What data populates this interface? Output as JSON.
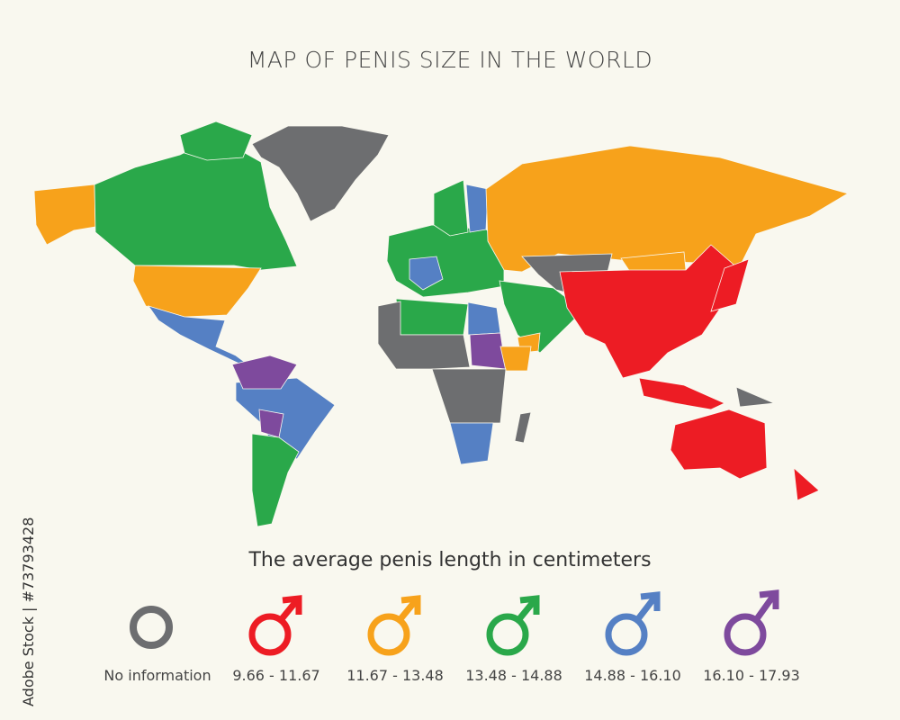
{
  "title": "MAP OF PENIS SIZE IN THE WORLD",
  "subtitle": "The average penis length in centimeters",
  "colors": {
    "none": "#6d6e70",
    "c1": "#ed1c24",
    "c2": "#f7a21b",
    "c3": "#2aa84a",
    "c4": "#5580c4",
    "c5": "#7e4a9d"
  },
  "legend": [
    {
      "label": "No information",
      "color": "#6d6e70",
      "icon": "circle-icon"
    },
    {
      "label": "9.66 - 11.67",
      "color": "#ed1c24",
      "icon": "male-symbol-icon"
    },
    {
      "label": "11.67 - 13.48",
      "color": "#f7a21b",
      "icon": "male-symbol-icon"
    },
    {
      "label": "13.48 - 14.88",
      "color": "#2aa84a",
      "icon": "male-symbol-icon"
    },
    {
      "label": "14.88 - 16.10",
      "color": "#5580c4",
      "icon": "male-symbol-icon"
    },
    {
      "label": "16.10 - 17.93",
      "color": "#7e4a9d",
      "icon": "male-symbol-icon"
    }
  ],
  "credit": "Adobe Stock | #73793428"
}
